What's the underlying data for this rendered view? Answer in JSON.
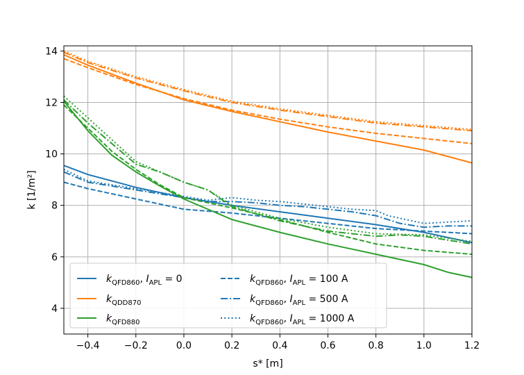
{
  "chart_data": {
    "type": "line",
    "xlabel": "s* [m]",
    "ylabel": "k [1/m²]",
    "xlim": [
      -0.5,
      1.2
    ],
    "ylim": [
      3.0,
      14.2
    ],
    "xticks": [
      -0.4,
      -0.2,
      0.0,
      0.2,
      0.4,
      0.6,
      0.8,
      1.0,
      1.2
    ],
    "xtick_labels": [
      "−0.4",
      "−0.2",
      "0.0",
      "0.2",
      "0.4",
      "0.6",
      "0.8",
      "1.0",
      "1.2"
    ],
    "yticks": [
      4,
      6,
      8,
      10,
      12,
      14
    ],
    "ytick_labels": [
      "4",
      "6",
      "8",
      "10",
      "12",
      "14"
    ],
    "grid": true,
    "legend_position": "lower-left",
    "colors": {
      "blue": "#1f77b4",
      "orange": "#ff7f0e",
      "green": "#2ca02c"
    },
    "legend": [
      {
        "label_main": "k",
        "label_sub": "QFD860",
        "label_rest": ", I",
        "label_sub2": "APL",
        "label_tail": " = 0",
        "color": "#1f77b4",
        "style": "solid"
      },
      {
        "label_main": "k",
        "label_sub": "QDD870",
        "label_rest": "",
        "label_sub2": "",
        "label_tail": "",
        "color": "#ff7f0e",
        "style": "solid"
      },
      {
        "label_main": "k",
        "label_sub": "QFD880",
        "label_rest": "",
        "label_sub2": "",
        "label_tail": "",
        "color": "#2ca02c",
        "style": "solid"
      },
      {
        "label_main": "k",
        "label_sub": "QFD860",
        "label_rest": ", I",
        "label_sub2": "APL",
        "label_tail": " = 100 A",
        "color": "#1f77b4",
        "style": "dashed"
      },
      {
        "label_main": "k",
        "label_sub": "QFD860",
        "label_rest": ", I",
        "label_sub2": "APL",
        "label_tail": " = 500 A",
        "color": "#1f77b4",
        "style": "dashdot"
      },
      {
        "label_main": "k",
        "label_sub": "QFD860",
        "label_rest": ", I",
        "label_sub2": "APL",
        "label_tail": " = 1000 A",
        "color": "#1f77b4",
        "style": "dotted"
      }
    ],
    "series": [
      {
        "name": "QFD860 I=0",
        "color": "#1f77b4",
        "style": "solid",
        "x": [
          -0.5,
          -0.4,
          -0.2,
          0.0,
          0.2,
          0.4,
          0.6,
          0.8,
          1.0,
          1.2
        ],
        "y": [
          9.55,
          9.2,
          8.7,
          8.3,
          8.0,
          7.75,
          7.5,
          7.25,
          6.95,
          6.55
        ]
      },
      {
        "name": "QFD860 I=100 A",
        "color": "#1f77b4",
        "style": "dashed",
        "x": [
          -0.5,
          -0.4,
          -0.2,
          0.0,
          0.2,
          0.4,
          0.6,
          0.8,
          0.9,
          1.0,
          1.1,
          1.2
        ],
        "y": [
          8.9,
          8.65,
          8.25,
          7.85,
          7.7,
          7.5,
          7.3,
          7.1,
          7.05,
          7.0,
          6.95,
          6.9
        ]
      },
      {
        "name": "QFD860 I=500 A",
        "color": "#1f77b4",
        "style": "dashdot",
        "x": [
          -0.5,
          -0.4,
          -0.3,
          -0.2,
          -0.1,
          0.0,
          0.1,
          0.2,
          0.3,
          0.4,
          0.5,
          0.6,
          0.7,
          0.8,
          0.9,
          1.0,
          1.1,
          1.2
        ],
        "y": [
          9.3,
          8.9,
          8.75,
          8.6,
          8.45,
          8.3,
          8.15,
          8.15,
          8.1,
          8.0,
          7.95,
          7.85,
          7.75,
          7.6,
          7.3,
          7.15,
          7.2,
          7.2
        ]
      },
      {
        "name": "QFD860 I=1000 A",
        "color": "#1f77b4",
        "style": "dotted",
        "x": [
          -0.5,
          -0.4,
          -0.3,
          -0.2,
          -0.1,
          0.0,
          0.1,
          0.2,
          0.3,
          0.4,
          0.5,
          0.6,
          0.7,
          0.8,
          0.85,
          0.9,
          1.0,
          1.1,
          1.2
        ],
        "y": [
          9.4,
          8.95,
          8.8,
          8.65,
          8.5,
          8.35,
          8.2,
          8.3,
          8.2,
          8.15,
          8.05,
          7.95,
          7.85,
          7.8,
          7.6,
          7.5,
          7.3,
          7.35,
          7.4
        ]
      },
      {
        "name": "QDD870 I=0",
        "color": "#ff7f0e",
        "style": "solid",
        "x": [
          -0.5,
          -0.4,
          -0.2,
          0.0,
          0.2,
          0.4,
          0.6,
          0.8,
          1.0,
          1.2
        ],
        "y": [
          13.85,
          13.45,
          12.75,
          12.1,
          11.65,
          11.25,
          10.85,
          10.5,
          10.15,
          9.65
        ]
      },
      {
        "name": "QDD870 I=100 A",
        "color": "#ff7f0e",
        "style": "dashed",
        "x": [
          -0.5,
          -0.4,
          -0.2,
          0.0,
          0.2,
          0.4,
          0.6,
          0.8,
          1.0,
          1.2
        ],
        "y": [
          13.7,
          13.35,
          12.7,
          12.15,
          11.7,
          11.35,
          11.05,
          10.8,
          10.6,
          10.4
        ]
      },
      {
        "name": "QDD870 I=500 A",
        "color": "#ff7f0e",
        "style": "dashdot",
        "x": [
          -0.5,
          -0.4,
          -0.2,
          0.0,
          0.2,
          0.4,
          0.6,
          0.8,
          1.0,
          1.2
        ],
        "y": [
          13.95,
          13.55,
          12.95,
          12.45,
          12.0,
          11.7,
          11.45,
          11.2,
          11.05,
          10.9
        ]
      },
      {
        "name": "QDD870 I=1000 A",
        "color": "#ff7f0e",
        "style": "dotted",
        "x": [
          -0.5,
          -0.4,
          -0.2,
          0.0,
          0.2,
          0.4,
          0.6,
          0.8,
          1.0,
          1.2
        ],
        "y": [
          14.0,
          13.6,
          13.0,
          12.5,
          12.05,
          11.75,
          11.5,
          11.25,
          11.1,
          10.95
        ]
      },
      {
        "name": "QFD880 I=0",
        "color": "#2ca02c",
        "style": "solid",
        "x": [
          -0.5,
          -0.4,
          -0.3,
          -0.2,
          -0.1,
          0.0,
          0.2,
          0.4,
          0.6,
          0.8,
          1.0,
          1.1,
          1.2
        ],
        "y": [
          12.05,
          10.9,
          9.95,
          9.3,
          8.75,
          8.25,
          7.45,
          6.95,
          6.5,
          6.1,
          5.7,
          5.4,
          5.2
        ]
      },
      {
        "name": "QFD880 I=100 A",
        "color": "#2ca02c",
        "style": "dashed",
        "x": [
          -0.5,
          -0.4,
          -0.3,
          -0.2,
          -0.1,
          0.0,
          0.2,
          0.4,
          0.6,
          0.8,
          1.0,
          1.2
        ],
        "y": [
          11.9,
          11.0,
          10.1,
          9.4,
          8.8,
          8.3,
          7.9,
          7.45,
          6.95,
          6.5,
          6.25,
          6.1
        ]
      },
      {
        "name": "QFD880 I=500 A",
        "color": "#2ca02c",
        "style": "dashdot",
        "x": [
          -0.5,
          -0.4,
          -0.3,
          -0.2,
          -0.1,
          0.0,
          0.1,
          0.2,
          0.4,
          0.6,
          0.8,
          0.9,
          1.0,
          1.2
        ],
        "y": [
          12.1,
          11.2,
          10.4,
          9.6,
          9.3,
          8.9,
          8.6,
          7.95,
          7.4,
          7.0,
          6.8,
          6.85,
          6.8,
          6.5
        ]
      },
      {
        "name": "QFD880 I=1000 A",
        "color": "#2ca02c",
        "style": "dotted",
        "x": [
          -0.5,
          -0.4,
          -0.3,
          -0.2,
          -0.1,
          0.0,
          0.1,
          0.2,
          0.4,
          0.6,
          0.8,
          1.0,
          1.2
        ],
        "y": [
          12.25,
          11.4,
          10.55,
          9.7,
          9.3,
          8.9,
          8.6,
          8.0,
          7.5,
          7.15,
          6.9,
          6.85,
          6.6
        ]
      }
    ]
  }
}
